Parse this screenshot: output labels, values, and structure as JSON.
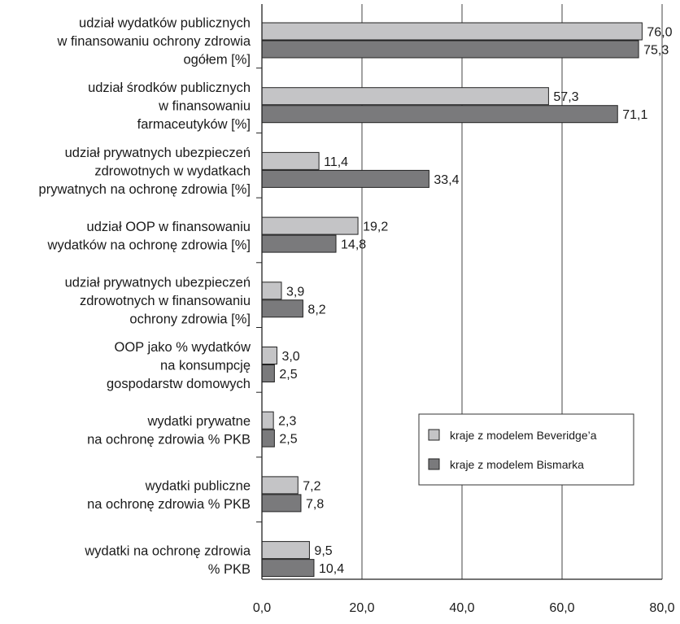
{
  "chart_data": {
    "type": "bar",
    "orientation": "horizontal",
    "categories": [
      [
        "udział wydatków publicznych",
        "w finansowaniu ochrony zdrowia",
        "ogółem [%]"
      ],
      [
        "udział środków publicznych",
        "w finansowaniu",
        "farmaceutyków [%]"
      ],
      [
        "udział prywatnych ubezpieczeń",
        "zdrowotnych w wydatkach",
        "prywatnych na ochronę zdrowia [%]"
      ],
      [
        "udział OOP w finansowaniu",
        "wydatków na ochronę zdrowia [%]"
      ],
      [
        "udział prywatnych ubezpieczeń",
        "zdrowotnych w finansowaniu",
        "ochrony zdrowia [%]"
      ],
      [
        "OOP jako % wydatków",
        "na konsumpcję",
        "gospodarstw domowych"
      ],
      [
        "wydatki prywatne",
        "na ochronę zdrowia % PKB"
      ],
      [
        "wydatki publiczne",
        "na ochronę zdrowia % PKB"
      ],
      [
        "wydatki na ochronę zdrowia",
        "% PKB"
      ]
    ],
    "series": [
      {
        "name": "kraje z modelem Beveridge’a",
        "color": "#c4c4c6",
        "values": [
          76.0,
          57.3,
          11.4,
          19.2,
          3.9,
          3.0,
          2.3,
          7.2,
          9.5
        ],
        "labels": [
          "76,0",
          "57,3",
          "11,4",
          "19,2",
          "3,9",
          "3,0",
          "2,3",
          "7,2",
          "9,5"
        ]
      },
      {
        "name": "kraje z modelem Bismarka",
        "color": "#7a7a7c",
        "values": [
          75.3,
          71.1,
          33.4,
          14.8,
          8.2,
          2.5,
          2.5,
          7.8,
          10.4
        ],
        "labels": [
          "75,3",
          "71,1",
          "33,4",
          "14,8",
          "8,2",
          "2,5",
          "2,5",
          "7,8",
          "10,4"
        ]
      }
    ],
    "xlim": [
      0,
      80
    ],
    "xticks": [
      0,
      20,
      40,
      60,
      80
    ],
    "xtick_labels": [
      "0,0",
      "20,0",
      "40,0",
      "60,0",
      "80,0"
    ],
    "grid": true,
    "legend_position": "center-right"
  }
}
